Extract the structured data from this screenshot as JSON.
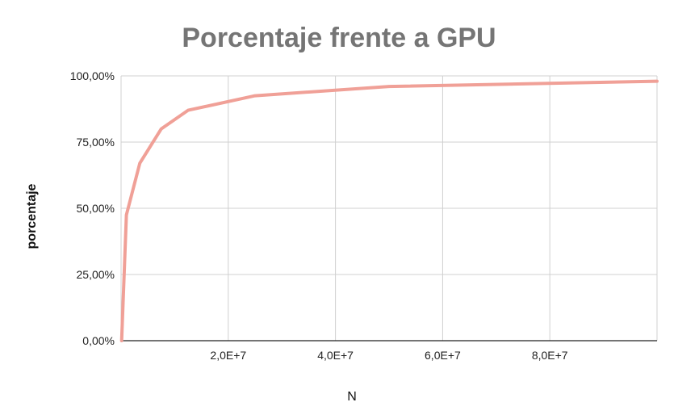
{
  "chart_data": {
    "type": "line",
    "title": "Porcentaje frente a GPU",
    "xlabel": "N",
    "ylabel": "porcentaje",
    "x_tick_labels": [
      "2,0E+7",
      "4,0E+7",
      "6,0E+7",
      "8,0E+7"
    ],
    "x_ticks": [
      20000000,
      40000000,
      60000000,
      80000000
    ],
    "y_tick_labels": [
      "0,00%",
      "25,00%",
      "50,00%",
      "75,00%",
      "100,00%"
    ],
    "y_ticks": [
      0,
      25,
      50,
      75,
      100
    ],
    "xlim": [
      0,
      100000000
    ],
    "ylim": [
      0,
      100
    ],
    "grid": true,
    "legend": "none",
    "series": [
      {
        "color": "#f0a097",
        "x": [
          100000,
          1000000,
          3500000,
          7500000,
          12500000,
          25000000,
          50000000,
          100000000
        ],
        "y": [
          0,
          47.5,
          67,
          80,
          87,
          92.5,
          96,
          98
        ]
      }
    ]
  }
}
